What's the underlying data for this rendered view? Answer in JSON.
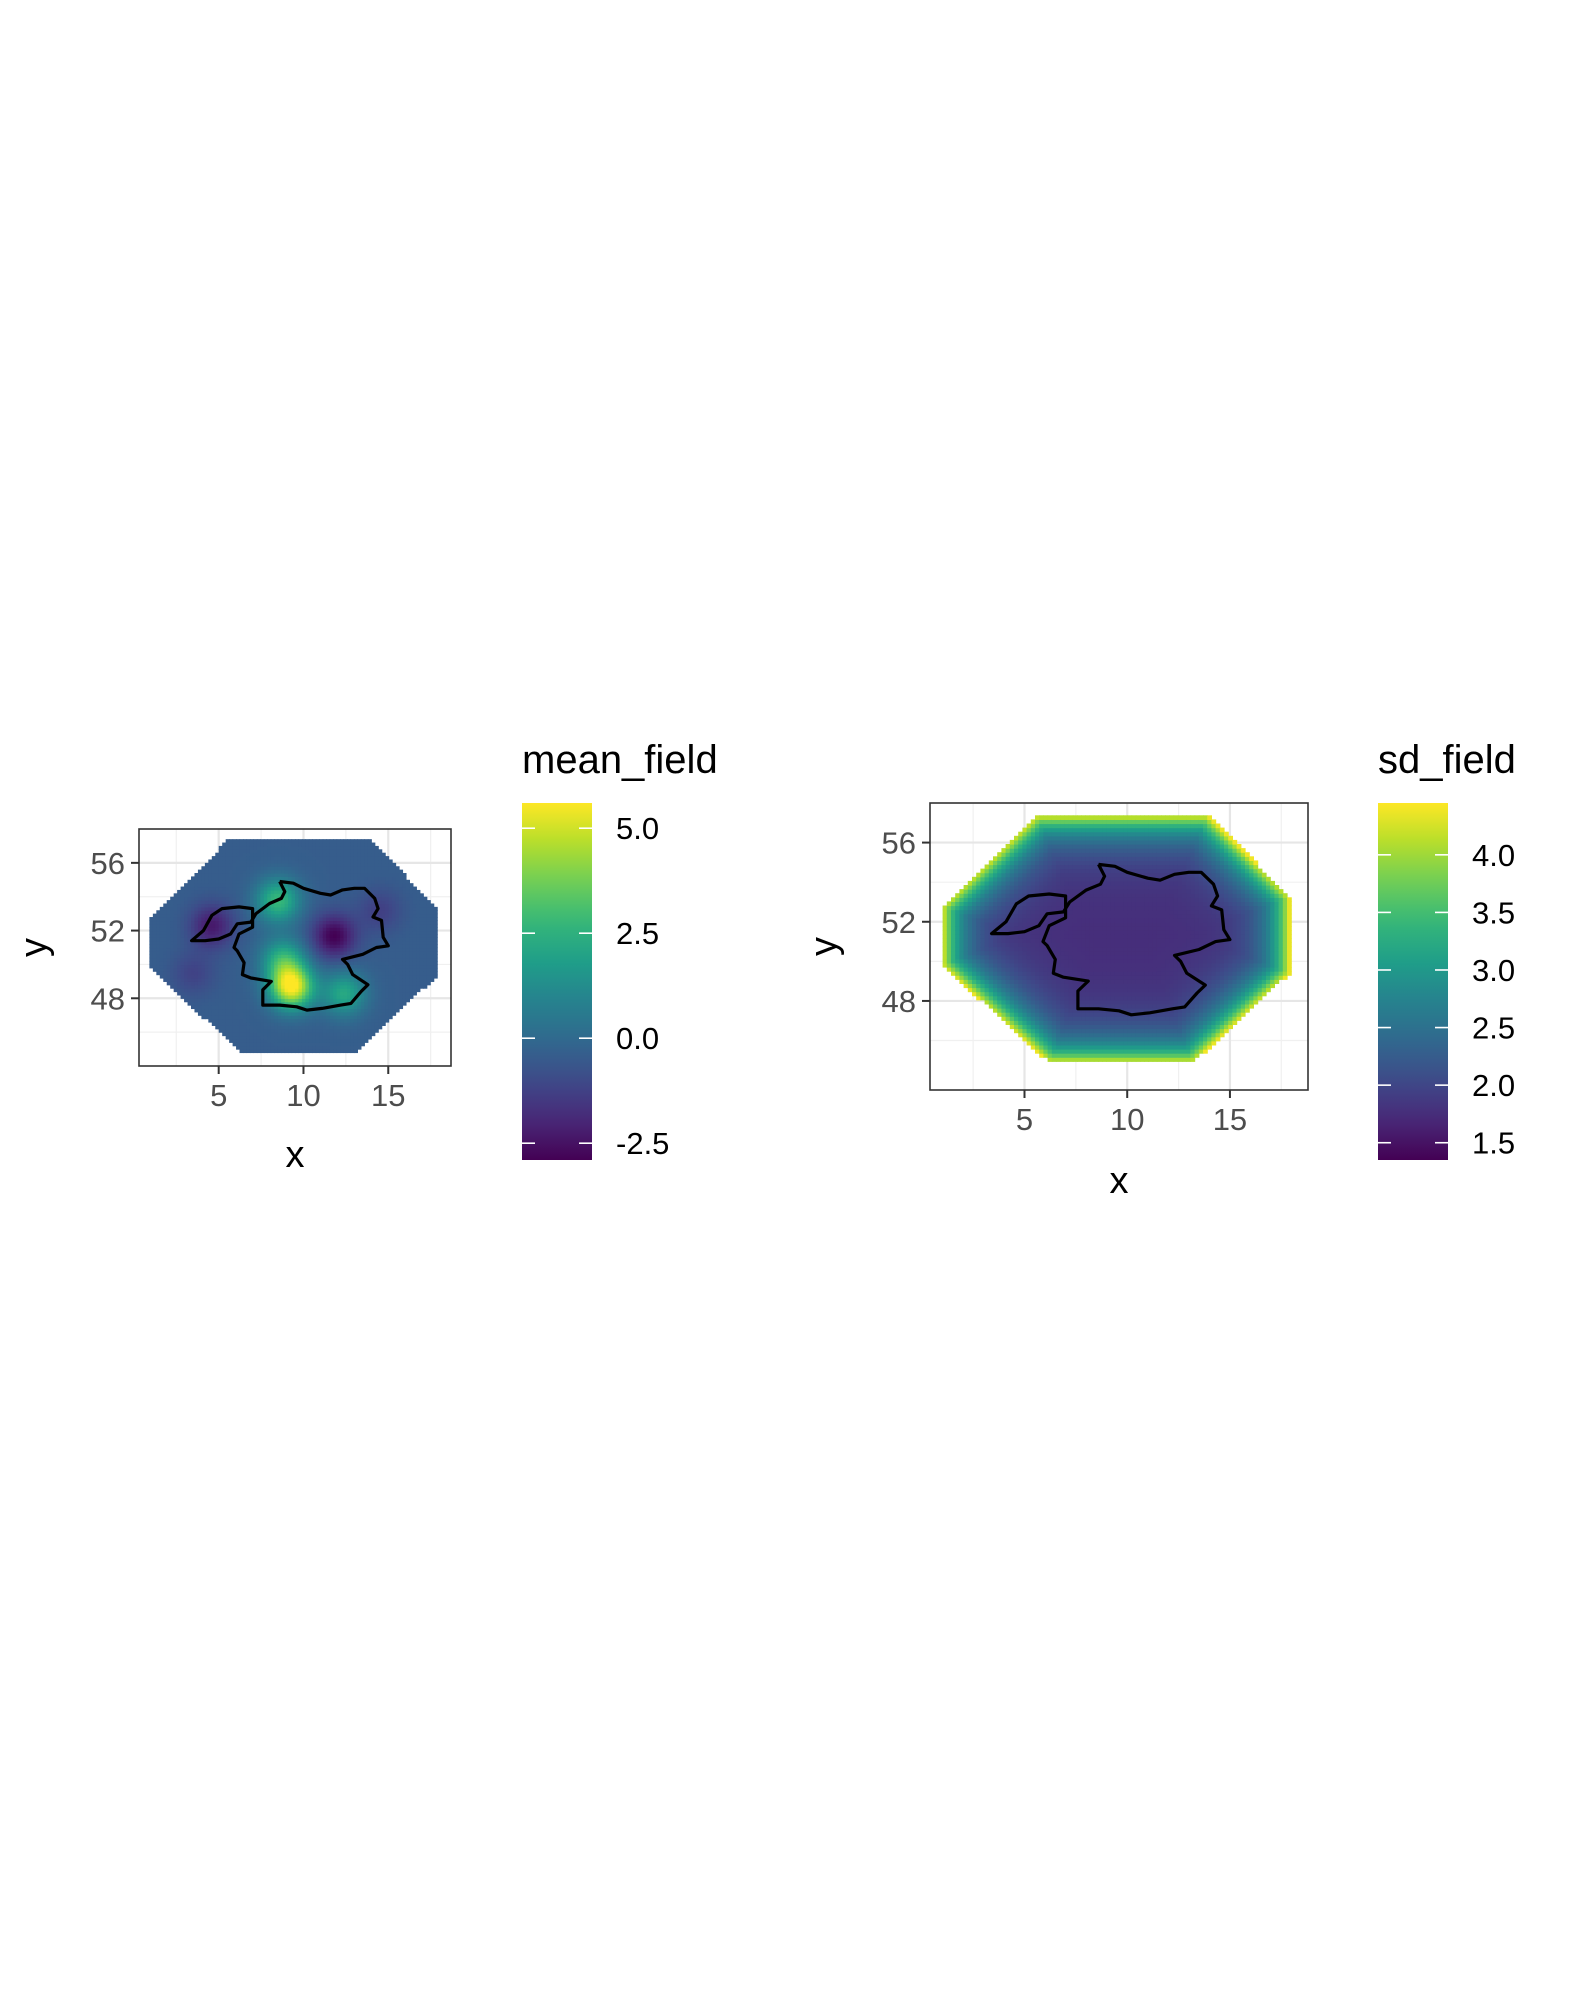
{
  "chart_data": [
    {
      "type": "heatmap",
      "title": "",
      "xlabel": "x",
      "ylabel": "y",
      "xlim": [
        0.3,
        18.7
      ],
      "ylim": [
        44.0,
        58.0
      ],
      "x_ticks": [
        5,
        10,
        15
      ],
      "y_ticks": [
        48,
        52,
        56
      ],
      "x_tick_labels": [
        "5",
        "10",
        "15"
      ],
      "y_tick_labels": [
        "48",
        "52",
        "56"
      ],
      "grid": true,
      "fill_name": "mean_field",
      "colorscale": "viridis",
      "color_range": [
        -2.9,
        5.6
      ],
      "colorbar_ticks": [
        5.0,
        2.5,
        0.0,
        -2.5
      ],
      "colorbar_tick_labels": [
        "5.0",
        "2.5",
        "0.0",
        "-2.5"
      ],
      "legend_position": "right",
      "base_value": -0.4,
      "hotspots": [
        {
          "x": 9.3,
          "y": 48.7,
          "value": 5.6
        },
        {
          "x": 8.8,
          "y": 50.3,
          "value": 2.4
        },
        {
          "x": 12.4,
          "y": 48.3,
          "value": 2.2
        },
        {
          "x": 8.5,
          "y": 53.8,
          "value": 2.8
        },
        {
          "x": 11.8,
          "y": 51.7,
          "value": -2.9
        },
        {
          "x": 4.6,
          "y": 52.3,
          "value": -2.3
        },
        {
          "x": 3.5,
          "y": 49.5,
          "value": -1.2
        },
        {
          "x": 14.5,
          "y": 53.2,
          "value": -1.3
        }
      ]
    },
    {
      "type": "heatmap",
      "title": "",
      "xlabel": "x",
      "ylabel": "y",
      "xlim": [
        0.4,
        18.8
      ],
      "ylim": [
        43.5,
        58.0
      ],
      "x_ticks": [
        5,
        10,
        15
      ],
      "y_ticks": [
        48,
        52,
        56
      ],
      "x_tick_labels": [
        "5",
        "10",
        "15"
      ],
      "y_tick_labels": [
        "48",
        "52",
        "56"
      ],
      "grid": true,
      "fill_name": "sd_field",
      "colorscale": "viridis",
      "color_range": [
        1.35,
        4.45
      ],
      "colorbar_ticks": [
        4.0,
        3.5,
        3.0,
        2.5,
        2.0,
        1.5
      ],
      "colorbar_tick_labels": [
        "4.0",
        "3.5",
        "3.0",
        "2.5",
        "2.0",
        "1.5"
      ],
      "legend_position": "right",
      "interior_value": 1.75,
      "boundary_value": 4.4
    }
  ],
  "mesh_hull": [
    [
      5.6,
      57.4
    ],
    [
      13.9,
      57.4
    ],
    [
      17.9,
      53.3
    ],
    [
      17.9,
      49.4
    ],
    [
      13.2,
      44.9
    ],
    [
      6.2,
      44.9
    ],
    [
      1.0,
      49.8
    ],
    [
      1.0,
      52.8
    ]
  ],
  "germany_outline": [
    [
      8.6,
      54.9
    ],
    [
      9.4,
      54.8
    ],
    [
      10.0,
      54.5
    ],
    [
      11.0,
      54.2
    ],
    [
      11.6,
      54.1
    ],
    [
      12.3,
      54.4
    ],
    [
      13.0,
      54.5
    ],
    [
      13.6,
      54.5
    ],
    [
      14.2,
      53.9
    ],
    [
      14.4,
      53.3
    ],
    [
      14.1,
      52.8
    ],
    [
      14.6,
      52.6
    ],
    [
      14.7,
      51.6
    ],
    [
      15.0,
      51.1
    ],
    [
      14.3,
      51.0
    ],
    [
      13.5,
      50.6
    ],
    [
      12.3,
      50.3
    ],
    [
      12.6,
      50.0
    ],
    [
      12.9,
      49.4
    ],
    [
      13.8,
      48.8
    ],
    [
      13.4,
      48.4
    ],
    [
      12.8,
      47.7
    ],
    [
      12.2,
      47.6
    ],
    [
      11.1,
      47.4
    ],
    [
      10.2,
      47.3
    ],
    [
      9.6,
      47.5
    ],
    [
      8.6,
      47.6
    ],
    [
      7.6,
      47.6
    ],
    [
      7.6,
      48.5
    ],
    [
      8.1,
      49.0
    ],
    [
      6.9,
      49.2
    ],
    [
      6.4,
      49.4
    ],
    [
      6.5,
      50.1
    ],
    [
      6.1,
      50.8
    ],
    [
      5.9,
      51.0
    ],
    [
      6.2,
      51.8
    ],
    [
      7.0,
      52.2
    ],
    [
      7.0,
      53.3
    ],
    [
      6.2,
      53.4
    ],
    [
      5.2,
      53.3
    ],
    [
      4.6,
      52.9
    ],
    [
      4.1,
      52.0
    ],
    [
      3.4,
      51.4
    ],
    [
      4.2,
      51.4
    ],
    [
      5.0,
      51.5
    ],
    [
      5.7,
      51.8
    ],
    [
      6.1,
      52.4
    ],
    [
      6.9,
      52.5
    ],
    [
      7.2,
      53.0
    ],
    [
      8.0,
      53.6
    ],
    [
      8.7,
      53.9
    ],
    [
      8.9,
      54.3
    ],
    [
      8.6,
      54.9
    ]
  ]
}
